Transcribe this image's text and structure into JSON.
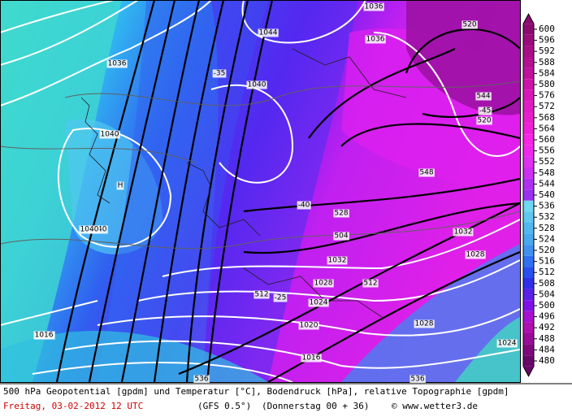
{
  "map": {
    "map_labels": [
      "1044",
      "1040",
      "1036",
      "1036",
      "1040",
      "1036",
      "1040",
      "1040",
      "1036",
      "1032",
      "1028",
      "1024",
      "1020",
      "1016",
      "1016",
      "1028",
      "1032",
      "1028",
      "1024",
      "528",
      "520",
      "520",
      "536",
      "H",
      "-35",
      "-40",
      "-45",
      "-25",
      "504",
      "512",
      "512",
      "536",
      "544",
      "548"
    ],
    "colorbar": {
      "ticks": [
        600,
        596,
        592,
        588,
        584,
        580,
        576,
        572,
        568,
        564,
        560,
        556,
        552,
        548,
        544,
        540,
        536,
        532,
        528,
        524,
        520,
        516,
        512,
        508,
        504,
        500,
        496,
        492,
        488,
        484,
        480
      ],
      "colors": [
        "#8c0a70",
        "#9a0c7a",
        "#a80e86",
        "#b41092",
        "#c0129e",
        "#cc14aa",
        "#d818b8",
        "#e01cc4",
        "#e820cc",
        "#f020d8",
        "#f824e4",
        "#f028ec",
        "#e030f0",
        "#cc30f0",
        "#b030f0",
        "#9a30f0",
        "#70d8f0",
        "#60c8f0",
        "#50b8f0",
        "#48a8f0",
        "#4090f0",
        "#3070f0",
        "#2850f0",
        "#3030e8",
        "#5820e8",
        "#8010e8",
        "#a810d0",
        "#b010b0",
        "#980c98",
        "#80087e",
        "#680868"
      ]
    },
    "footer": {
      "line1": "500 hPa Geopotential [gpdm] und Temperatur [°C], Bodendruck [hPa], relative Topographie [gpdm]",
      "date": "Freitag, 03-02-2012  12 UTC",
      "model": "(GFS 0.5°)",
      "run": "(Donnerstag 00 + 36)",
      "credit": "© www.wetter3.de"
    }
  }
}
